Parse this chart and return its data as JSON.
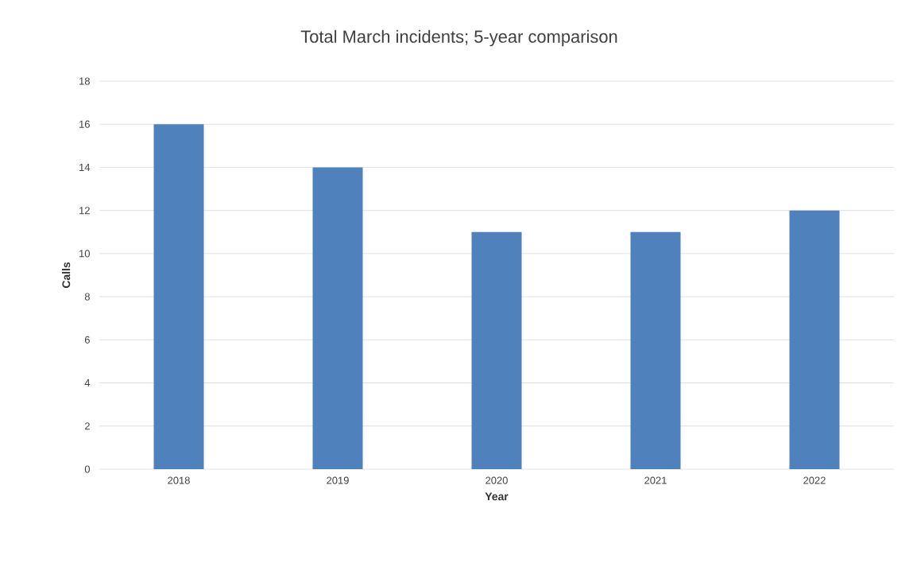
{
  "chart_data": {
    "type": "bar",
    "title": "Total March incidents; 5-year comparison",
    "xlabel": "Year",
    "ylabel": "Calls",
    "categories": [
      "2018",
      "2019",
      "2020",
      "2021",
      "2022"
    ],
    "values": [
      16,
      14,
      11,
      11,
      12
    ],
    "color": "#4f81bd",
    "ylim": [
      0,
      18
    ],
    "yticks": [
      0,
      2,
      4,
      6,
      8,
      10,
      12,
      14,
      16,
      18
    ],
    "grid": "y"
  }
}
